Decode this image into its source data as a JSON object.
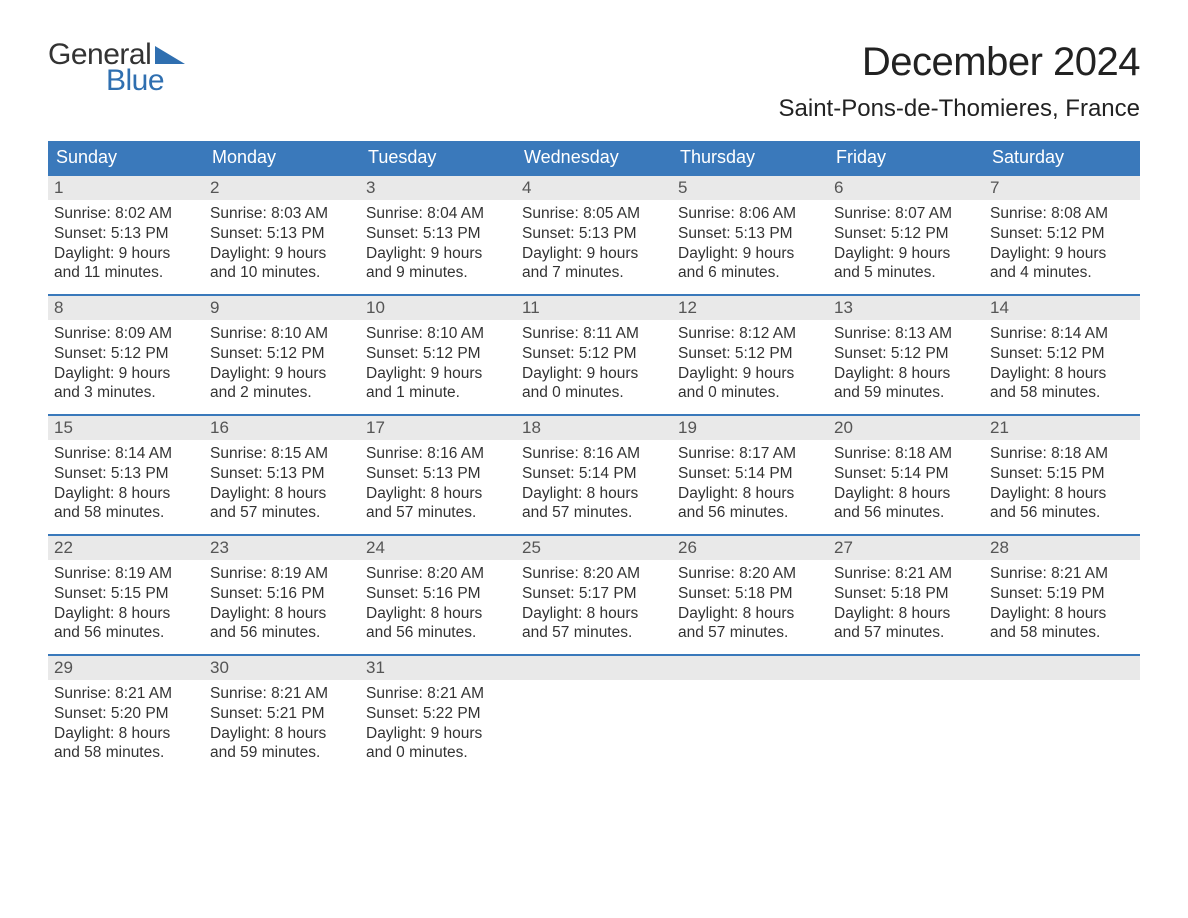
{
  "brand": {
    "line1": "General",
    "line2": "Blue",
    "logo_color": "#2f6fb0",
    "text_color": "#333333"
  },
  "title": "December 2024",
  "location": "Saint-Pons-de-Thomieres, France",
  "colors": {
    "header_bg": "#3a79bb",
    "header_text": "#ffffff",
    "daynum_bg": "#e9e9e9",
    "daynum_text": "#555555",
    "body_text": "#333333",
    "week_border": "#3a79bb",
    "page_bg": "#ffffff"
  },
  "day_names": [
    "Sunday",
    "Monday",
    "Tuesday",
    "Wednesday",
    "Thursday",
    "Friday",
    "Saturday"
  ],
  "weeks": [
    [
      {
        "n": "1",
        "sunrise": "Sunrise: 8:02 AM",
        "sunset": "Sunset: 5:13 PM",
        "dl1": "Daylight: 9 hours",
        "dl2": "and 11 minutes."
      },
      {
        "n": "2",
        "sunrise": "Sunrise: 8:03 AM",
        "sunset": "Sunset: 5:13 PM",
        "dl1": "Daylight: 9 hours",
        "dl2": "and 10 minutes."
      },
      {
        "n": "3",
        "sunrise": "Sunrise: 8:04 AM",
        "sunset": "Sunset: 5:13 PM",
        "dl1": "Daylight: 9 hours",
        "dl2": "and 9 minutes."
      },
      {
        "n": "4",
        "sunrise": "Sunrise: 8:05 AM",
        "sunset": "Sunset: 5:13 PM",
        "dl1": "Daylight: 9 hours",
        "dl2": "and 7 minutes."
      },
      {
        "n": "5",
        "sunrise": "Sunrise: 8:06 AM",
        "sunset": "Sunset: 5:13 PM",
        "dl1": "Daylight: 9 hours",
        "dl2": "and 6 minutes."
      },
      {
        "n": "6",
        "sunrise": "Sunrise: 8:07 AM",
        "sunset": "Sunset: 5:12 PM",
        "dl1": "Daylight: 9 hours",
        "dl2": "and 5 minutes."
      },
      {
        "n": "7",
        "sunrise": "Sunrise: 8:08 AM",
        "sunset": "Sunset: 5:12 PM",
        "dl1": "Daylight: 9 hours",
        "dl2": "and 4 minutes."
      }
    ],
    [
      {
        "n": "8",
        "sunrise": "Sunrise: 8:09 AM",
        "sunset": "Sunset: 5:12 PM",
        "dl1": "Daylight: 9 hours",
        "dl2": "and 3 minutes."
      },
      {
        "n": "9",
        "sunrise": "Sunrise: 8:10 AM",
        "sunset": "Sunset: 5:12 PM",
        "dl1": "Daylight: 9 hours",
        "dl2": "and 2 minutes."
      },
      {
        "n": "10",
        "sunrise": "Sunrise: 8:10 AM",
        "sunset": "Sunset: 5:12 PM",
        "dl1": "Daylight: 9 hours",
        "dl2": "and 1 minute."
      },
      {
        "n": "11",
        "sunrise": "Sunrise: 8:11 AM",
        "sunset": "Sunset: 5:12 PM",
        "dl1": "Daylight: 9 hours",
        "dl2": "and 0 minutes."
      },
      {
        "n": "12",
        "sunrise": "Sunrise: 8:12 AM",
        "sunset": "Sunset: 5:12 PM",
        "dl1": "Daylight: 9 hours",
        "dl2": "and 0 minutes."
      },
      {
        "n": "13",
        "sunrise": "Sunrise: 8:13 AM",
        "sunset": "Sunset: 5:12 PM",
        "dl1": "Daylight: 8 hours",
        "dl2": "and 59 minutes."
      },
      {
        "n": "14",
        "sunrise": "Sunrise: 8:14 AM",
        "sunset": "Sunset: 5:12 PM",
        "dl1": "Daylight: 8 hours",
        "dl2": "and 58 minutes."
      }
    ],
    [
      {
        "n": "15",
        "sunrise": "Sunrise: 8:14 AM",
        "sunset": "Sunset: 5:13 PM",
        "dl1": "Daylight: 8 hours",
        "dl2": "and 58 minutes."
      },
      {
        "n": "16",
        "sunrise": "Sunrise: 8:15 AM",
        "sunset": "Sunset: 5:13 PM",
        "dl1": "Daylight: 8 hours",
        "dl2": "and 57 minutes."
      },
      {
        "n": "17",
        "sunrise": "Sunrise: 8:16 AM",
        "sunset": "Sunset: 5:13 PM",
        "dl1": "Daylight: 8 hours",
        "dl2": "and 57 minutes."
      },
      {
        "n": "18",
        "sunrise": "Sunrise: 8:16 AM",
        "sunset": "Sunset: 5:14 PM",
        "dl1": "Daylight: 8 hours",
        "dl2": "and 57 minutes."
      },
      {
        "n": "19",
        "sunrise": "Sunrise: 8:17 AM",
        "sunset": "Sunset: 5:14 PM",
        "dl1": "Daylight: 8 hours",
        "dl2": "and 56 minutes."
      },
      {
        "n": "20",
        "sunrise": "Sunrise: 8:18 AM",
        "sunset": "Sunset: 5:14 PM",
        "dl1": "Daylight: 8 hours",
        "dl2": "and 56 minutes."
      },
      {
        "n": "21",
        "sunrise": "Sunrise: 8:18 AM",
        "sunset": "Sunset: 5:15 PM",
        "dl1": "Daylight: 8 hours",
        "dl2": "and 56 minutes."
      }
    ],
    [
      {
        "n": "22",
        "sunrise": "Sunrise: 8:19 AM",
        "sunset": "Sunset: 5:15 PM",
        "dl1": "Daylight: 8 hours",
        "dl2": "and 56 minutes."
      },
      {
        "n": "23",
        "sunrise": "Sunrise: 8:19 AM",
        "sunset": "Sunset: 5:16 PM",
        "dl1": "Daylight: 8 hours",
        "dl2": "and 56 minutes."
      },
      {
        "n": "24",
        "sunrise": "Sunrise: 8:20 AM",
        "sunset": "Sunset: 5:16 PM",
        "dl1": "Daylight: 8 hours",
        "dl2": "and 56 minutes."
      },
      {
        "n": "25",
        "sunrise": "Sunrise: 8:20 AM",
        "sunset": "Sunset: 5:17 PM",
        "dl1": "Daylight: 8 hours",
        "dl2": "and 57 minutes."
      },
      {
        "n": "26",
        "sunrise": "Sunrise: 8:20 AM",
        "sunset": "Sunset: 5:18 PM",
        "dl1": "Daylight: 8 hours",
        "dl2": "and 57 minutes."
      },
      {
        "n": "27",
        "sunrise": "Sunrise: 8:21 AM",
        "sunset": "Sunset: 5:18 PM",
        "dl1": "Daylight: 8 hours",
        "dl2": "and 57 minutes."
      },
      {
        "n": "28",
        "sunrise": "Sunrise: 8:21 AM",
        "sunset": "Sunset: 5:19 PM",
        "dl1": "Daylight: 8 hours",
        "dl2": "and 58 minutes."
      }
    ],
    [
      {
        "n": "29",
        "sunrise": "Sunrise: 8:21 AM",
        "sunset": "Sunset: 5:20 PM",
        "dl1": "Daylight: 8 hours",
        "dl2": "and 58 minutes."
      },
      {
        "n": "30",
        "sunrise": "Sunrise: 8:21 AM",
        "sunset": "Sunset: 5:21 PM",
        "dl1": "Daylight: 8 hours",
        "dl2": "and 59 minutes."
      },
      {
        "n": "31",
        "sunrise": "Sunrise: 8:21 AM",
        "sunset": "Sunset: 5:22 PM",
        "dl1": "Daylight: 9 hours",
        "dl2": "and 0 minutes."
      },
      {
        "empty": true
      },
      {
        "empty": true
      },
      {
        "empty": true
      },
      {
        "empty": true
      }
    ]
  ]
}
